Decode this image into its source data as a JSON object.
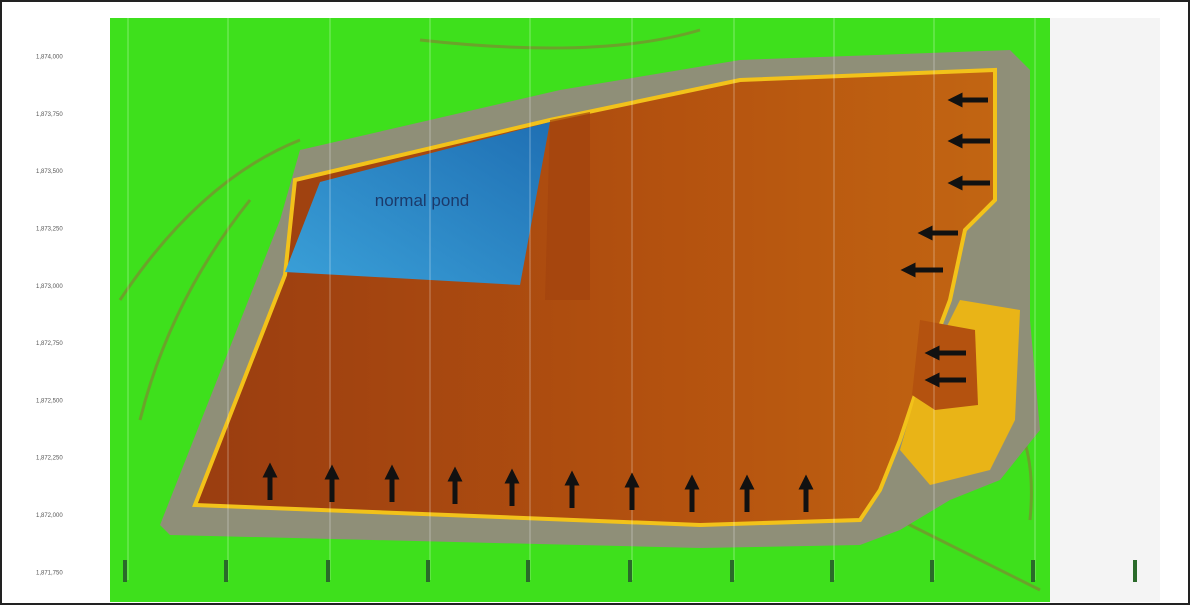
{
  "map": {
    "label": "normal pond",
    "y_labels": [
      "1,874,000",
      "1,873,750",
      "1,873,500",
      "1,873,250",
      "1,873,000",
      "1,872,750",
      "1,872,500",
      "1,872,250",
      "1,872,000",
      "1,871,750"
    ]
  }
}
